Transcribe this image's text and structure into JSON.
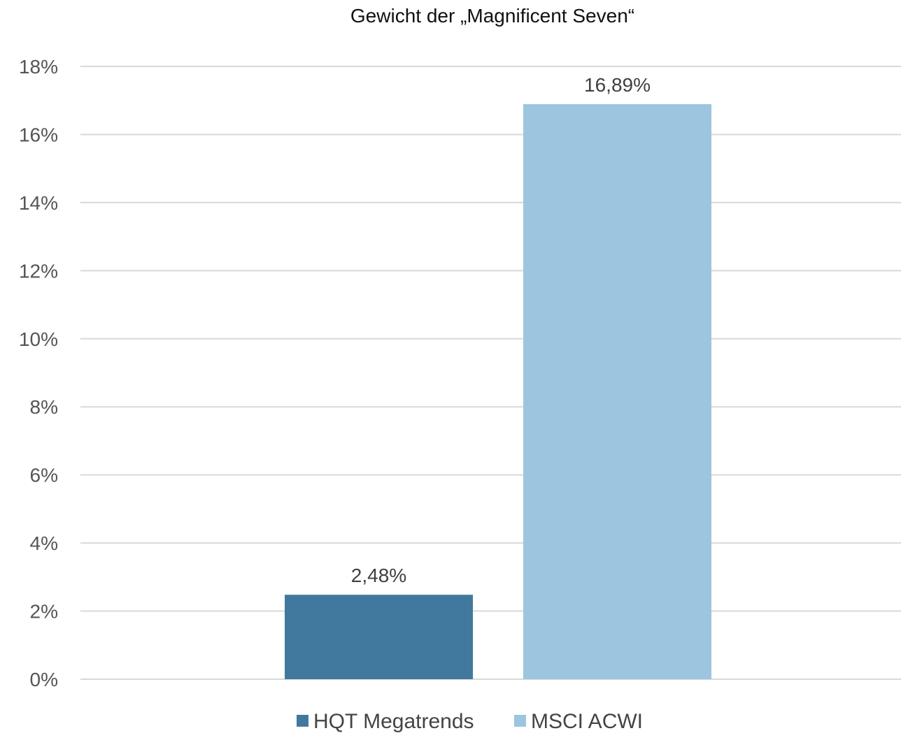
{
  "chart_data": {
    "type": "bar",
    "title": "Gewicht der „Magnificent Seven“",
    "xlabel": "",
    "ylabel": "",
    "ylim": [
      0,
      18
    ],
    "yticks": [
      0,
      2,
      4,
      6,
      8,
      10,
      12,
      14,
      16,
      18
    ],
    "ytick_labels": [
      "0%",
      "2%",
      "4%",
      "6%",
      "8%",
      "10%",
      "12%",
      "14%",
      "16%",
      "18%"
    ],
    "grid": true,
    "legend_position": "bottom",
    "series": [
      {
        "name": "HQT Megatrends",
        "values": [
          2.48
        ],
        "label": "2,48%",
        "color": "#41799e"
      },
      {
        "name": "MSCI ACWI",
        "values": [
          16.89
        ],
        "label": "16,89%",
        "color": "#9cc5df"
      }
    ]
  }
}
